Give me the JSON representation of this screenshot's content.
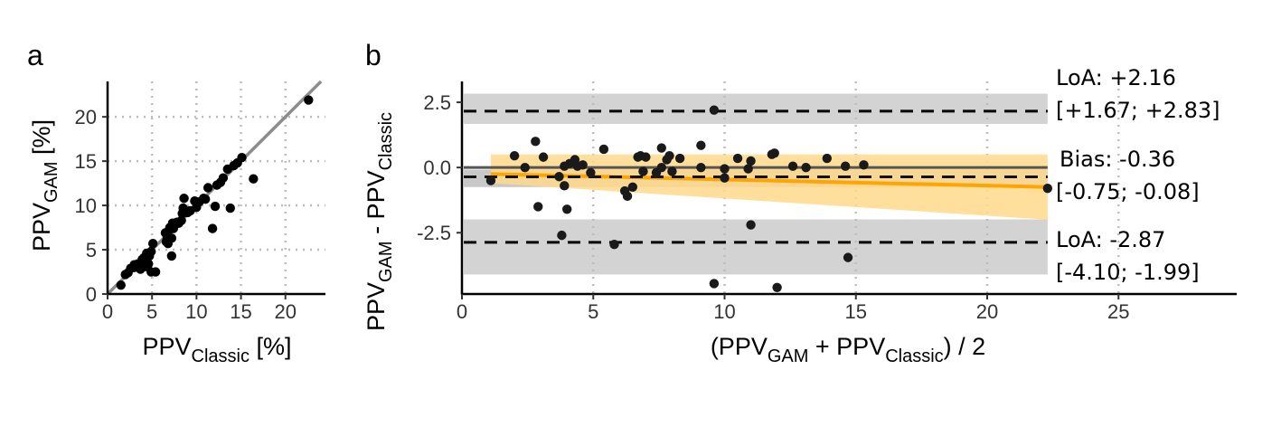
{
  "chart_data": [
    {
      "panel": "a",
      "type": "scatter",
      "xlabel": {
        "main": "PPV",
        "sub": "Classic",
        "suffix": " [%]"
      },
      "ylabel": {
        "main": "PPV",
        "sub": "GAM",
        "suffix": " [%]"
      },
      "xlim": [
        0,
        24.5
      ],
      "ylim": [
        0,
        24
      ],
      "xticks": [
        0,
        5,
        10,
        15,
        20
      ],
      "yticks": [
        0,
        5,
        10,
        15,
        20
      ],
      "grid": "dotted",
      "identity_line": true,
      "x": [
        1.5,
        2.0,
        2.3,
        2.6,
        3.0,
        3.0,
        3.2,
        3.4,
        3.6,
        3.7,
        3.8,
        3.9,
        4.1,
        4.2,
        4.3,
        4.4,
        4.6,
        4.7,
        4.9,
        4.9,
        5.1,
        5.4,
        6.5,
        6.6,
        6.7,
        6.8,
        6.9,
        7.0,
        7.2,
        7.2,
        7.3,
        7.4,
        7.5,
        7.8,
        8.0,
        8.3,
        8.4,
        8.5,
        8.6,
        9.0,
        9.3,
        9.8,
        10.0,
        10.3,
        10.8,
        11.0,
        11.3,
        11.8,
        12.1,
        12.3,
        12.7,
        13.0,
        13.5,
        13.8,
        14.2,
        14.6,
        15.1,
        16.4,
        22.6
      ],
      "y": [
        1.0,
        2.2,
        2.4,
        2.9,
        3.0,
        3.3,
        3.2,
        3.4,
        3.1,
        2.8,
        3.4,
        3.9,
        4.1,
        3.6,
        3.1,
        4.6,
        3.4,
        4.3,
        2.5,
        4.8,
        5.7,
        2.5,
        6.9,
        5.9,
        6.2,
        5.7,
        7.2,
        7.5,
        6.3,
        4.3,
        8.0,
        7.4,
        7.7,
        8.1,
        8.0,
        8.3,
        9.1,
        9.7,
        10.8,
        9.2,
        9.4,
        10.5,
        9.8,
        10.4,
        10.8,
        10.7,
        12.0,
        7.4,
        9.9,
        12.3,
        12.6,
        13.1,
        14.1,
        9.7,
        14.5,
        14.8,
        15.4,
        13.0,
        21.9
      ]
    },
    {
      "panel": "b",
      "type": "scatter",
      "xlabel": {
        "open": "(PPV",
        "sub1": "GAM",
        "mid": " + PPV",
        "sub2": "Classic",
        "close": ") / 2"
      },
      "ylabel": {
        "main1": "PPV",
        "sub1": "GAM",
        "mid": " - PPV",
        "sub2": "Classic"
      },
      "xlim": [
        0,
        29.5
      ],
      "ylim": [
        -4.85,
        3.3
      ],
      "xticks": [
        0,
        5,
        10,
        15,
        20,
        25
      ],
      "yticks": [
        2.5,
        0.0,
        -2.5
      ],
      "ytick_labels": [
        "2.5",
        "0.0",
        "-2.5"
      ],
      "grid": "dotted",
      "x": [
        1.1,
        2.0,
        2.4,
        2.8,
        2.9,
        3.1,
        3.7,
        3.8,
        3.9,
        3.9,
        4.0,
        4.1,
        4.3,
        4.4,
        4.6,
        4.9,
        5.4,
        5.8,
        6.2,
        6.3,
        6.5,
        6.7,
        6.8,
        6.9,
        7.0,
        7.4,
        7.6,
        7.6,
        7.8,
        7.9,
        8.0,
        8.3,
        9.1,
        9.1,
        9.6,
        9.6,
        10.0,
        10.0,
        10.5,
        11.0,
        10.9,
        11.0,
        11.8,
        11.9,
        12.0,
        12.6,
        13.1,
        13.9,
        14.6,
        14.7,
        15.3,
        22.3
      ],
      "y": [
        -0.5,
        0.45,
        0.0,
        1.0,
        -1.5,
        0.4,
        -0.35,
        -2.6,
        0.05,
        -0.7,
        -1.6,
        0.15,
        0.3,
        0.05,
        0.1,
        -0.2,
        0.7,
        -2.95,
        -0.9,
        -1.1,
        -0.75,
        0.4,
        0.45,
        -0.15,
        0.4,
        -0.2,
        0.75,
        0.0,
        0.3,
        0.45,
        -0.15,
        0.35,
        0.0,
        0.85,
        -4.45,
        2.2,
        -0.4,
        -0.05,
        0.35,
        0.25,
        -0.05,
        -2.2,
        0.5,
        0.55,
        -4.6,
        0.05,
        0.0,
        0.35,
        0.05,
        -3.45,
        0.1,
        -0.8
      ],
      "bias": {
        "value": -0.36,
        "ci": [
          -0.75,
          -0.08
        ]
      },
      "loa_upper": {
        "value": 2.16,
        "ci": [
          1.67,
          2.83
        ]
      },
      "loa_lower": {
        "value": -2.87,
        "ci": [
          -4.1,
          -1.99
        ]
      },
      "trend": {
        "x": [
          1.1,
          22.3
        ],
        "y": [
          -0.25,
          -0.75
        ],
        "ci_upper": [
          0.5,
          0.5
        ],
        "ci_lower": [
          -0.6,
          -2.0
        ]
      },
      "annotations": {
        "loa_upper_line1": "LoA: +2.16",
        "loa_upper_line2": "[+1.67; +2.83]",
        "bias_line1": "Bias: -0.36",
        "bias_line2": "[-0.75; -0.08]",
        "loa_lower_line1": "LoA: -2.87",
        "loa_lower_line2": "[-4.10; -1.99]"
      },
      "colors": {
        "trend": "#ffa500",
        "trend_band": "#ffd98a",
        "loa_band": "#d3d3d3",
        "bias_band": "#c8c8c8"
      }
    }
  ],
  "colors": {
    "points": "#000000",
    "axis": "#000000",
    "grid": "#bdbdbd",
    "identity": "#8c8c8c"
  }
}
